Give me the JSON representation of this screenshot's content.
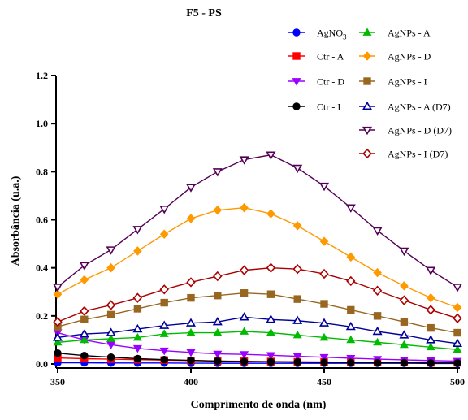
{
  "chart_data": {
    "type": "line",
    "title": "F5 - PS",
    "xlabel": "Comprimento de onda (nm)",
    "ylabel": "Absorbância (u.a.)",
    "xlim": [
      350,
      500
    ],
    "ylim": [
      0,
      1.2
    ],
    "x_ticks": [
      "350",
      "400",
      "450",
      "500"
    ],
    "y_ticks": [
      "0.0",
      "0.2",
      "0.4",
      "0.6",
      "0.8",
      "1.0",
      "1.2"
    ],
    "grid": false,
    "legend_position": "top-right",
    "x": [
      350,
      360,
      370,
      380,
      390,
      400,
      410,
      420,
      430,
      440,
      450,
      460,
      470,
      480,
      490,
      500
    ],
    "series": [
      {
        "name": "AgNO",
        "name_sub": "3",
        "color": "#0000ff",
        "marker": "circle-filled",
        "values": [
          0.005,
          0.005,
          0.004,
          0.004,
          0.004,
          0.003,
          0.003,
          0.003,
          0.003,
          0.003,
          0.003,
          0.003,
          0.003,
          0.003,
          0.002,
          0.002
        ]
      },
      {
        "name": "Ctr - A",
        "color": "#ff0000",
        "marker": "square-filled",
        "values": [
          0.025,
          0.022,
          0.02,
          0.018,
          0.016,
          0.014,
          0.012,
          0.011,
          0.01,
          0.009,
          0.008,
          0.007,
          0.006,
          0.006,
          0.005,
          0.005
        ]
      },
      {
        "name": "Ctr - D",
        "color": "#9900ff",
        "marker": "triangle-down-filled",
        "values": [
          0.13,
          0.1,
          0.08,
          0.065,
          0.055,
          0.048,
          0.042,
          0.04,
          0.036,
          0.032,
          0.028,
          0.024,
          0.02,
          0.017,
          0.014,
          0.012
        ]
      },
      {
        "name": "Ctr - I",
        "color": "#000000",
        "marker": "circle-filled",
        "values": [
          0.045,
          0.035,
          0.028,
          0.022,
          0.018,
          0.015,
          0.012,
          0.01,
          0.009,
          0.008,
          0.007,
          0.006,
          0.005,
          0.005,
          0.004,
          0.004
        ]
      },
      {
        "name": "AgNPs - A",
        "color": "#00bb00",
        "marker": "triangle-up-filled",
        "values": [
          0.09,
          0.1,
          0.105,
          0.11,
          0.125,
          0.13,
          0.13,
          0.135,
          0.13,
          0.12,
          0.11,
          0.1,
          0.09,
          0.08,
          0.07,
          0.06
        ]
      },
      {
        "name": "AgNPs - D",
        "color": "#ff9900",
        "marker": "diamond-filled",
        "values": [
          0.29,
          0.35,
          0.4,
          0.47,
          0.54,
          0.605,
          0.64,
          0.65,
          0.625,
          0.575,
          0.51,
          0.445,
          0.38,
          0.325,
          0.275,
          0.235
        ]
      },
      {
        "name": "AgNPs - I",
        "color": "#996622",
        "marker": "square-filled",
        "values": [
          0.155,
          0.185,
          0.205,
          0.23,
          0.255,
          0.275,
          0.285,
          0.295,
          0.29,
          0.27,
          0.25,
          0.225,
          0.2,
          0.175,
          0.15,
          0.13
        ]
      },
      {
        "name": "AgNPs - A (D7)",
        "color": "#000099",
        "marker": "triangle-up-open",
        "values": [
          0.11,
          0.125,
          0.13,
          0.145,
          0.16,
          0.17,
          0.175,
          0.195,
          0.185,
          0.18,
          0.17,
          0.155,
          0.135,
          0.12,
          0.1,
          0.085
        ]
      },
      {
        "name": "AgNPs - D (D7)",
        "color": "#550055",
        "marker": "triangle-down-open",
        "values": [
          0.32,
          0.41,
          0.475,
          0.56,
          0.645,
          0.735,
          0.8,
          0.85,
          0.87,
          0.815,
          0.74,
          0.65,
          0.555,
          0.47,
          0.39,
          0.32
        ]
      },
      {
        "name": "AgNPs - I (D7)",
        "color": "#aa0000",
        "marker": "diamond-open",
        "values": [
          0.175,
          0.22,
          0.245,
          0.275,
          0.31,
          0.34,
          0.365,
          0.39,
          0.4,
          0.395,
          0.375,
          0.345,
          0.305,
          0.265,
          0.225,
          0.19
        ]
      }
    ]
  }
}
